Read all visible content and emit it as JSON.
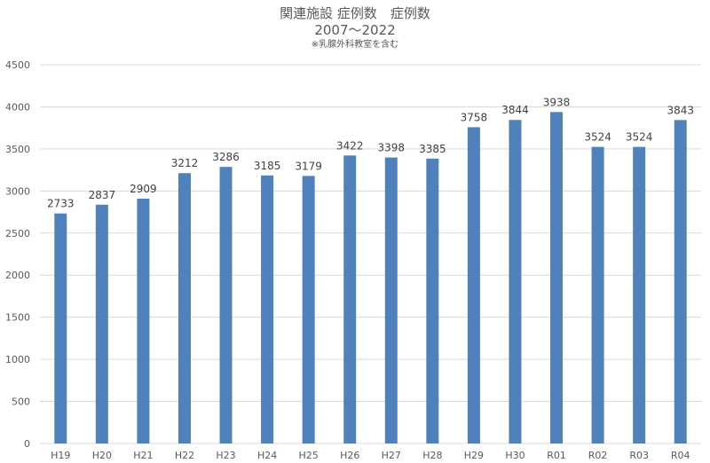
{
  "chart_data": {
    "type": "bar",
    "title": "関連施設 症例数　症例数",
    "subtitle": "2007～2022",
    "note": "※乳腺外科教室を含む",
    "categories": [
      "H19",
      "H20",
      "H21",
      "H22",
      "H23",
      "H24",
      "H25",
      "H26",
      "H27",
      "H28",
      "H29",
      "H30",
      "R01",
      "R02",
      "R03",
      "R04"
    ],
    "values": [
      2733,
      2837,
      2909,
      3212,
      3286,
      3185,
      3179,
      3422,
      3398,
      3385,
      3758,
      3844,
      3938,
      3524,
      3524,
      3843
    ],
    "ylim": [
      0,
      4500
    ],
    "yticks": [
      0,
      500,
      1000,
      1500,
      2000,
      2500,
      3000,
      3500,
      4000,
      4500
    ],
    "grid": true,
    "legend": "none",
    "bar_color": "#4f81bd",
    "grid_color": "#d9d9d9"
  }
}
